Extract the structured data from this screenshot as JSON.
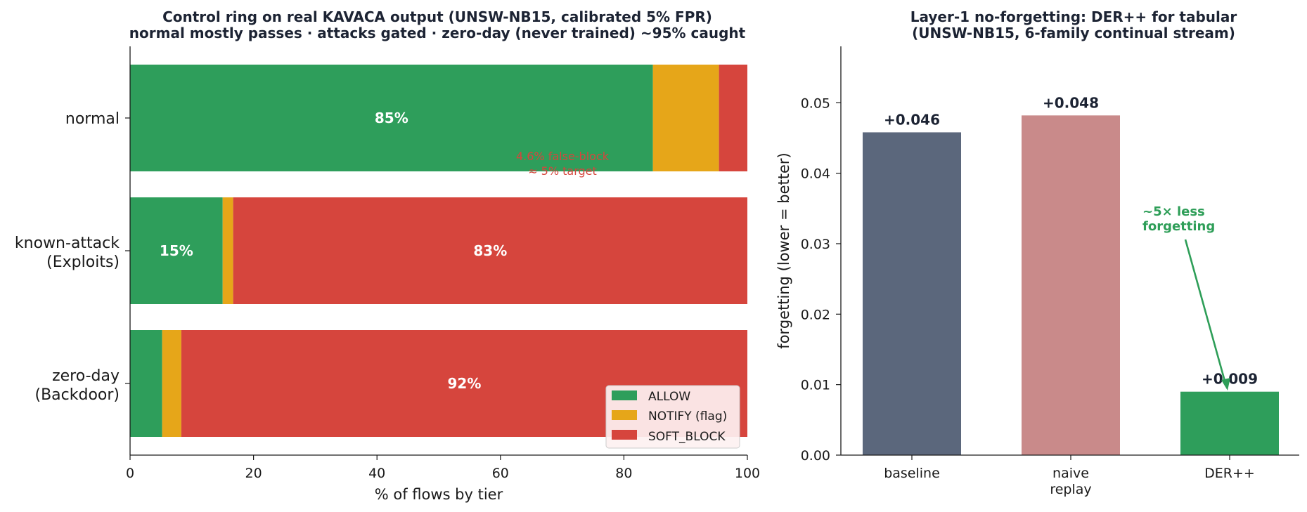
{
  "colors": {
    "allow": "#2e9e5b",
    "notify": "#e6a619",
    "soft_block": "#d6453d",
    "baseline": "#5b677c",
    "naive_replay": "#c98a8a",
    "derpp": "#2e9e5b",
    "title": "#1c2333"
  },
  "chart_data": [
    {
      "type": "bar",
      "orientation": "horizontal",
      "stacked": true,
      "title": "Control ring on real KAVACA output (UNSW-NB15, calibrated 5% FPR)",
      "subtitle": "normal mostly passes · attacks gated · zero-day (never trained) ~95% caught",
      "xlabel": "% of flows by tier",
      "ylabel": "",
      "xlim": [
        0,
        100
      ],
      "x_ticks": [
        "0",
        "20",
        "40",
        "60",
        "80",
        "100"
      ],
      "categories": [
        {
          "label": "normal",
          "label2": ""
        },
        {
          "label": "known-attack",
          "label2": "(Exploits)"
        },
        {
          "label": "zero-day",
          "label2": "(Backdoor)"
        }
      ],
      "series": [
        {
          "name": "ALLOW",
          "values": [
            84.7,
            15.0,
            5.2
          ]
        },
        {
          "name": "NOTIFY (flag)",
          "values": [
            10.7,
            1.7,
            3.1
          ]
        },
        {
          "name": "SOFT_BLOCK",
          "values": [
            4.6,
            83.3,
            91.7
          ]
        }
      ],
      "bar_labels": [
        {
          "row": 0,
          "series": 0,
          "text": "85%"
        },
        {
          "row": 1,
          "series": 0,
          "text": "15%"
        },
        {
          "row": 1,
          "series": 2,
          "text": "83%"
        },
        {
          "row": 2,
          "series": 2,
          "text": "92%"
        }
      ],
      "annotation": {
        "line1": "4.6% false-block",
        "line2": "≈ 5% target"
      },
      "legend_position": "bottom-right",
      "grid": false
    },
    {
      "type": "bar",
      "title": "Layer-1 no-forgetting: DER++ for tabular",
      "subtitle": "(UNSW-NB15, 6-family continual stream)",
      "xlabel": "",
      "ylabel": "forgetting  (lower = better)",
      "ylim": [
        0,
        0.058
      ],
      "y_ticks": [
        "0.00",
        "0.01",
        "0.02",
        "0.03",
        "0.04",
        "0.05"
      ],
      "categories": [
        {
          "label": "baseline",
          "label2": ""
        },
        {
          "label": "naive",
          "label2": "replay"
        },
        {
          "label": "DER++",
          "label2": ""
        }
      ],
      "values": [
        0.0458,
        0.0482,
        0.009
      ],
      "value_labels": [
        "+0.046",
        "+0.048",
        "+0.009"
      ],
      "annotation": {
        "line1": "~5× less",
        "line2": "forgetting"
      },
      "grid": false
    }
  ]
}
